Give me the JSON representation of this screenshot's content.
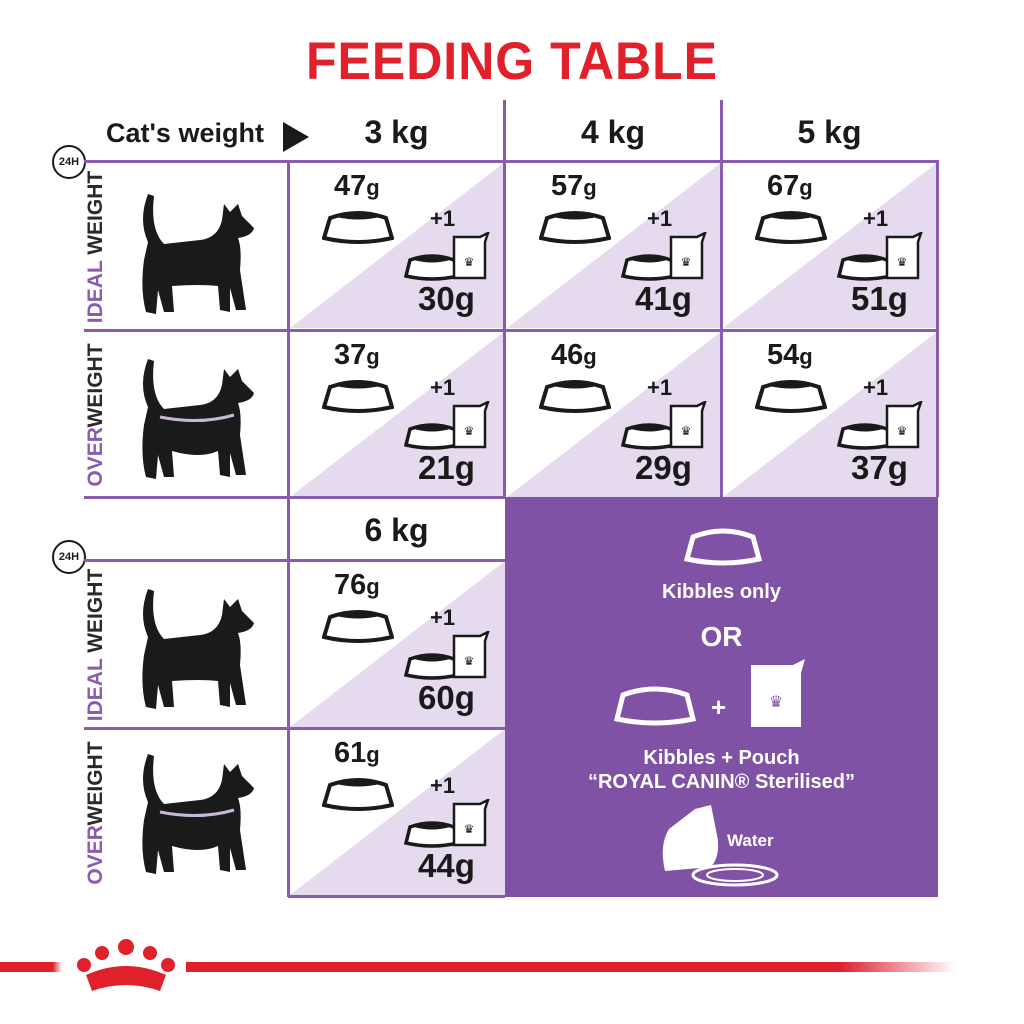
{
  "title": "FEEDING TABLE",
  "header": {
    "label": "Cat's weight",
    "arrow_icon": "play-triangle-icon",
    "clock_label": "24H"
  },
  "weights_top": [
    "3 kg",
    "4 kg",
    "5 kg"
  ],
  "weights_bottom": [
    "6 kg"
  ],
  "row_labels": {
    "ideal": {
      "a": "IDEAL",
      "b": " WEIGHT"
    },
    "over": {
      "a": "OVER",
      "b": "WEIGHT"
    }
  },
  "pouch_label": "+1",
  "cells": [
    {
      "kibbles": "47",
      "mixed": "30g"
    },
    {
      "kibbles": "57",
      "mixed": "41g"
    },
    {
      "kibbles": "67",
      "mixed": "51g"
    },
    {
      "kibbles": "37",
      "mixed": "21g"
    },
    {
      "kibbles": "46",
      "mixed": "29g"
    },
    {
      "kibbles": "54",
      "mixed": "37g"
    },
    {
      "kibbles": "76",
      "mixed": "60g"
    },
    {
      "kibbles": "61",
      "mixed": "44g"
    }
  ],
  "unit": "g",
  "legend": {
    "kibbles_only": "Kibbles only",
    "or": "OR",
    "plus": "+",
    "kibbles_pouch": "Kibbles + Pouch",
    "product": "“ROYAL CANIN® Sterilised”",
    "water": "Water"
  },
  "colors": {
    "brand_red": "#e0202b",
    "purple": "#7f52a6",
    "light_purple": "#e6daef"
  }
}
